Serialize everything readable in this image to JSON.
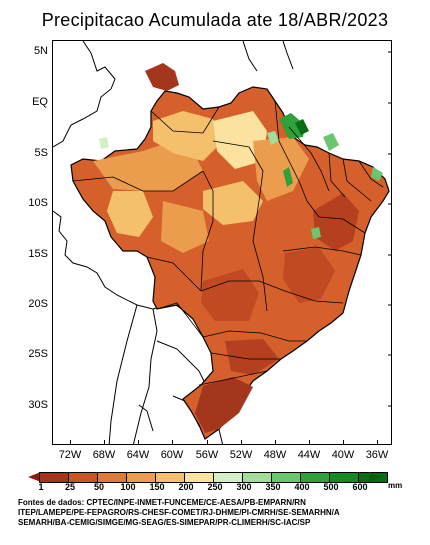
{
  "title": "Precipitacao Acumulada ate 18/ABR/2023",
  "y_labels": [
    "5N",
    "EQ",
    "5S",
    "10S",
    "15S",
    "20S",
    "25S",
    "30S"
  ],
  "x_labels": [
    "72W",
    "68W",
    "64W",
    "60W",
    "56W",
    "52W",
    "48W",
    "44W",
    "40W",
    "36W"
  ],
  "colorbar": {
    "labels": [
      "1",
      "25",
      "50",
      "100",
      "150",
      "200",
      "250",
      "300",
      "350",
      "400",
      "500",
      "600"
    ],
    "unit": "mm",
    "colors": [
      "#a5361e",
      "#c8552a",
      "#dd7a38",
      "#eb9c4c",
      "#f5c06c",
      "#fbe29e",
      "#d2efc6",
      "#a2dd9c",
      "#6cc56f",
      "#2ea13a",
      "#138a24",
      "#0a6d16"
    ]
  },
  "sources": [
    "Fontes de dados: CPTEC/INPE-INMET-FUNCEME/CE-AESA/PB-EMPARN/RN",
    "ITEP/LAMEPE/PE-FEPAGRO/RS-CHESF-COMET/RJ-DHME/PI-CMRH/SE-SEMARHN/A",
    "SEMARH/BA-CEMIG/SIMGE/MG-SEAG/ES-SIMEPAR/PR-CLIMERH/SC-IAC/SP"
  ]
}
